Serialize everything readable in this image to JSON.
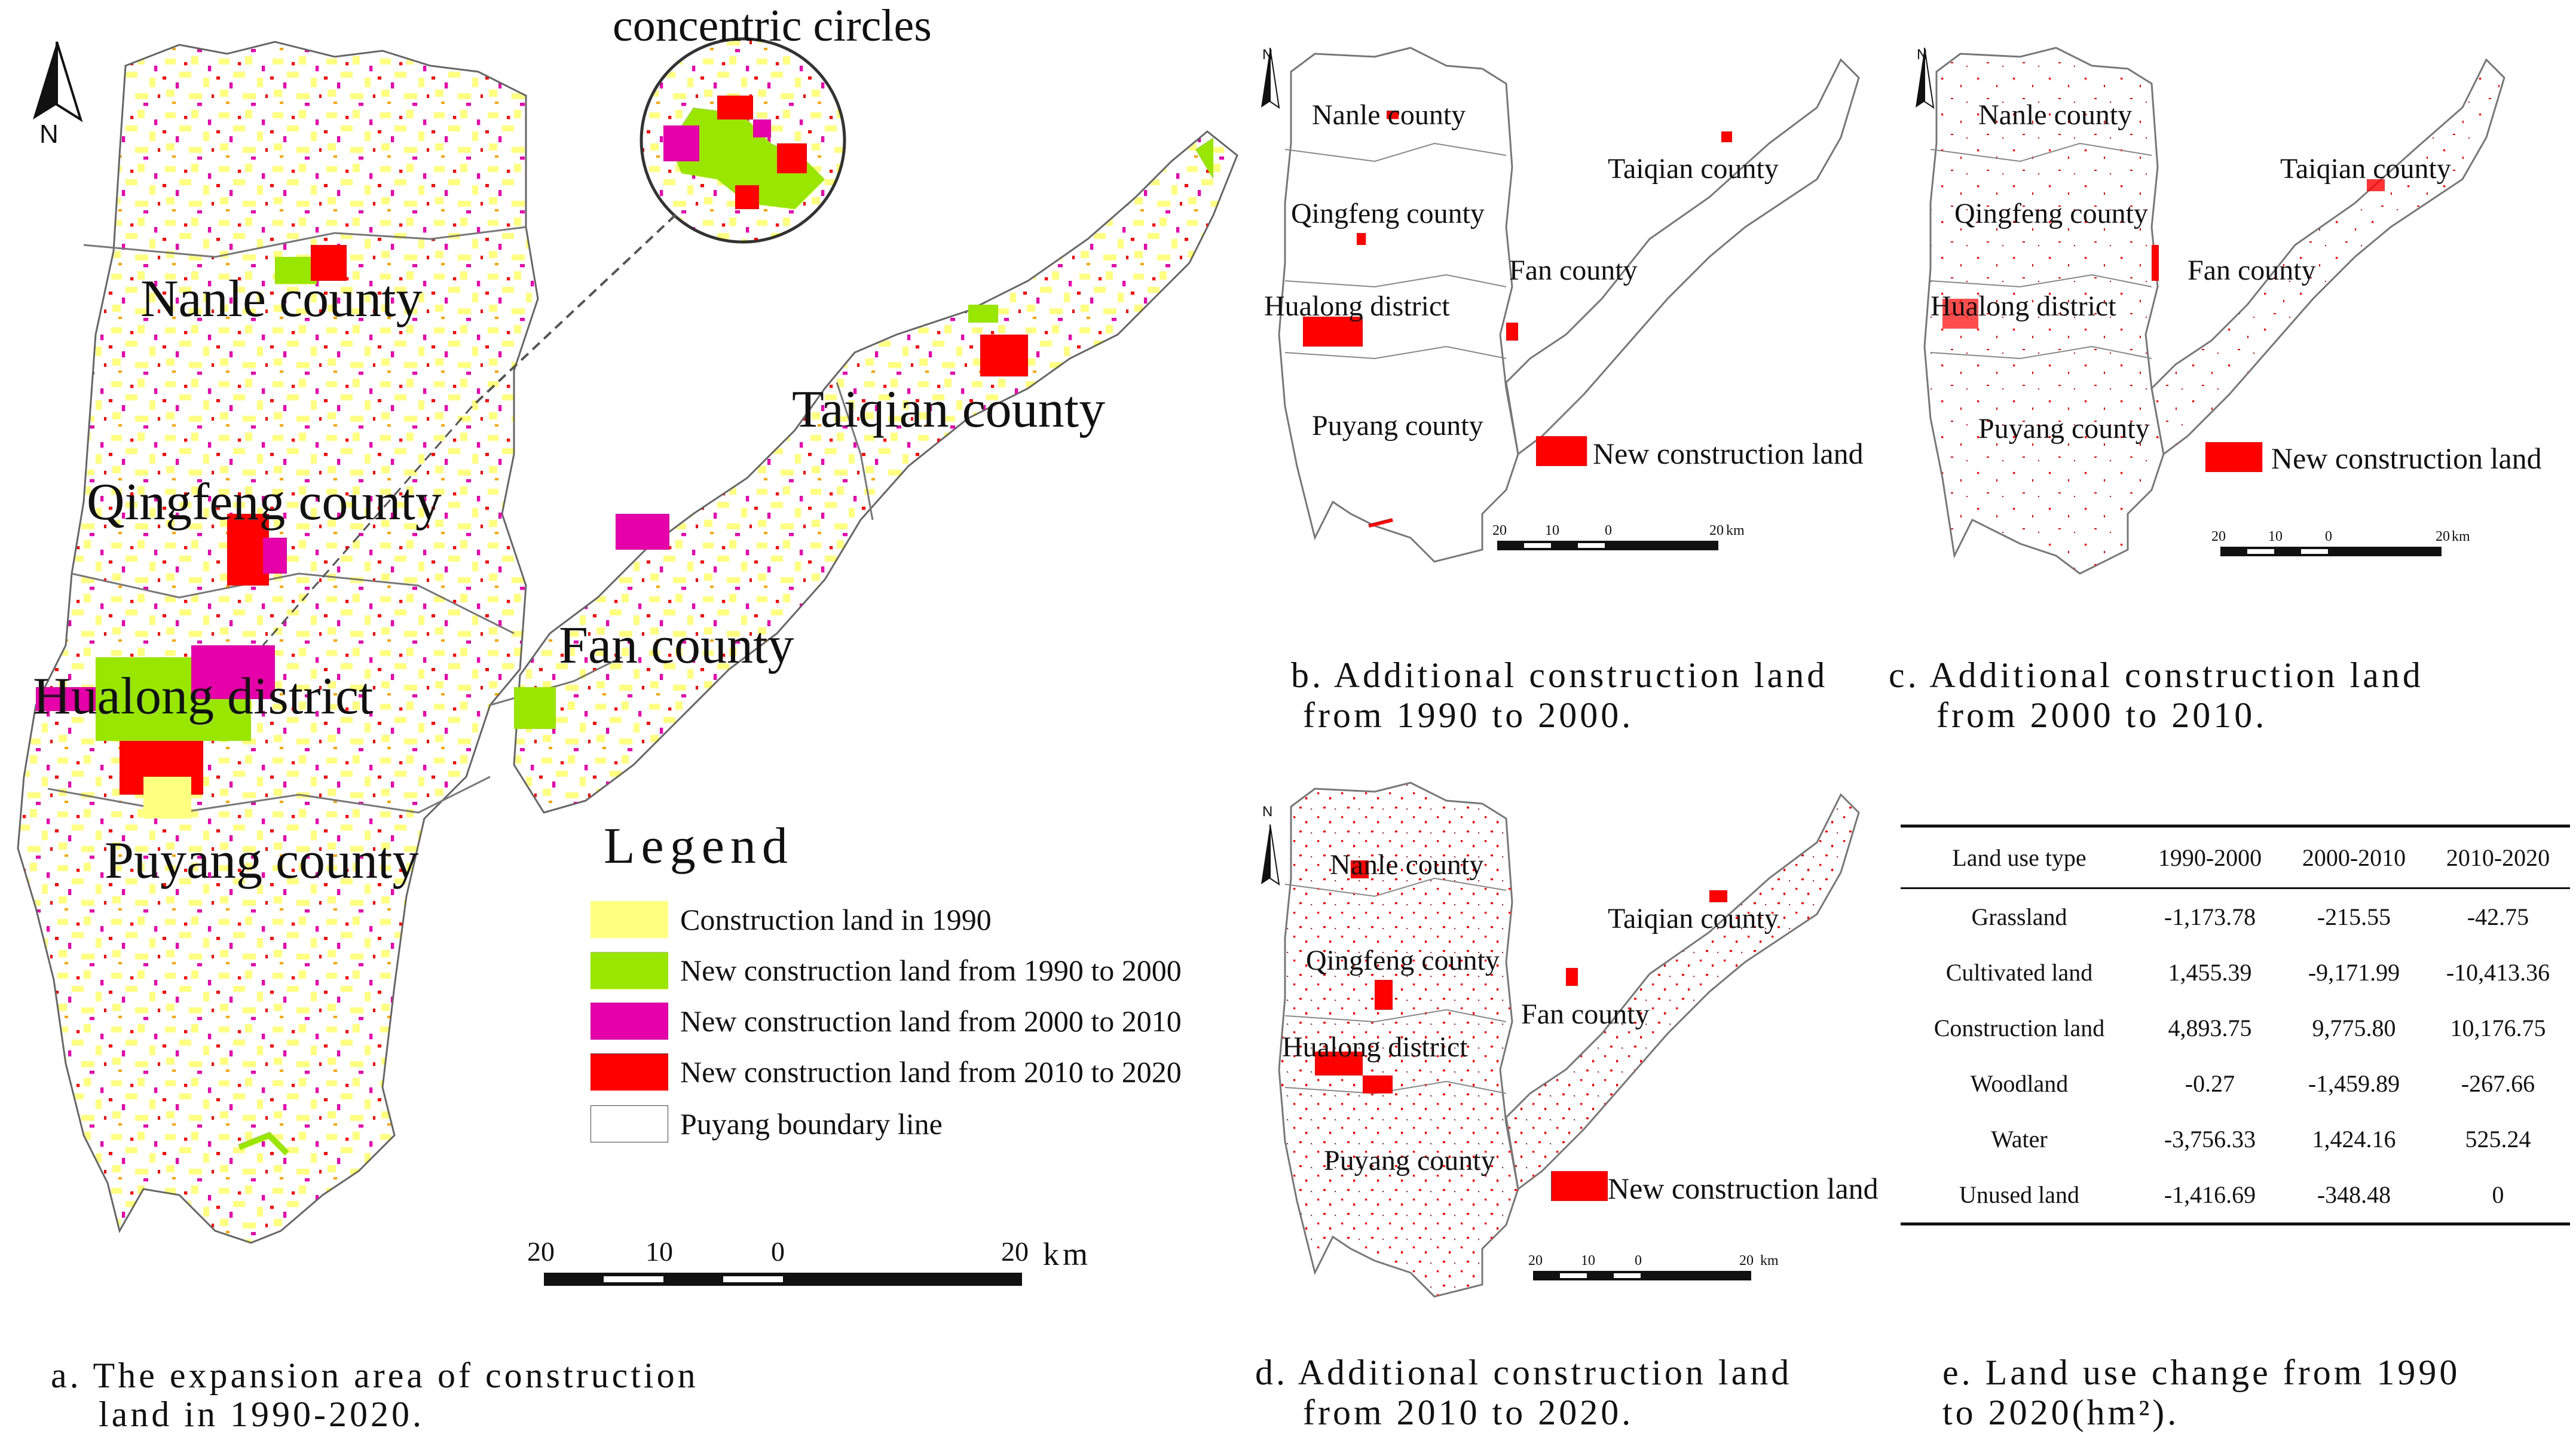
{
  "panel_a": {
    "circle_title": "concentric circles",
    "north": "N",
    "counties": {
      "nanle": "Nanle county",
      "qingfeng": "Qingfeng county",
      "hualong": "Hualong district",
      "puyang": "Puyang county",
      "fan": "Fan county",
      "taiqian": "Taiqian county"
    },
    "legend": {
      "title": "Legend",
      "items": [
        {
          "label": "Construction land in 1990",
          "color": "#ffff80"
        },
        {
          "label": "New construction land from 1990 to 2000",
          "color": "#99e600"
        },
        {
          "label": "New construction land from 2000 to 2010",
          "color": "#e600a9"
        },
        {
          "label": "New construction land from 2010 to 2020",
          "color": "#ff0000"
        },
        {
          "label": "Puyang boundary line",
          "color": "#ffffff"
        }
      ]
    },
    "scale": {
      "t1": "20",
      "t2": "10",
      "t3": "0",
      "t4": "20",
      "unit": "km"
    },
    "caption_line1": "a. The expansion area of construction",
    "caption_line2": "land in 1990-2020."
  },
  "panel_b": {
    "north": "N",
    "counties": {
      "nanle": "Nanle county",
      "qingfeng": "Qingfeng county",
      "hualong": "Hualong district",
      "puyang": "Puyang county",
      "fan": "Fan county",
      "taiqian": "Taiqian county"
    },
    "legend_label": "New construction land",
    "scale": {
      "t1": "20",
      "t2": "10",
      "t3": "0",
      "t4": "20",
      "unit": "km"
    },
    "caption_line1": "b. Additional construction land",
    "caption_line2": "from 1990 to 2000."
  },
  "panel_c": {
    "north": "N",
    "counties": {
      "nanle": "Nanle county",
      "qingfeng": "Qingfeng county",
      "hualong": "Hualong district",
      "puyang": "Puyang county",
      "fan": "Fan county",
      "taiqian": "Taiqian county"
    },
    "legend_label": "New construction land",
    "scale": {
      "t1": "20",
      "t2": "10",
      "t3": "0",
      "t4": "20",
      "unit": "km"
    },
    "caption_line1": "c. Additional construction land",
    "caption_line2": "from 2000 to 2010."
  },
  "panel_d": {
    "north": "N",
    "counties": {
      "nanle": "Nanle county",
      "qingfeng": "Qingfeng county",
      "hualong": "Hualong district",
      "puyang": "Puyang county",
      "fan": "Fan county",
      "taiqian": "Taiqian county"
    },
    "legend_label": "New construction land",
    "scale": {
      "t1": "20",
      "t2": "10",
      "t3": "0",
      "t4": "20",
      "unit": "km"
    },
    "caption_line1": "d. Additional construction land",
    "caption_line2": "from 2010 to 2020."
  },
  "panel_e": {
    "headers": [
      "Land use type",
      "1990-2000",
      "2000-2010",
      "2010-2020"
    ],
    "rows": [
      [
        "Grassland",
        "-1,173.78",
        "-215.55",
        "-42.75"
      ],
      [
        "Cultivated land",
        "1,455.39",
        "-9,171.99",
        "-10,413.36"
      ],
      [
        "Construction land",
        "4,893.75",
        "9,775.80",
        "10,176.75"
      ],
      [
        "Woodland",
        "-0.27",
        "-1,459.89",
        "-267.66"
      ],
      [
        "Water",
        "-3,756.33",
        "1,424.16",
        "525.24"
      ],
      [
        "Unused land",
        "-1,416.69",
        "-348.48",
        "0"
      ]
    ],
    "caption_line1": "e. Land use change from 1990",
    "caption_line2": "to 2020(hm²)."
  }
}
